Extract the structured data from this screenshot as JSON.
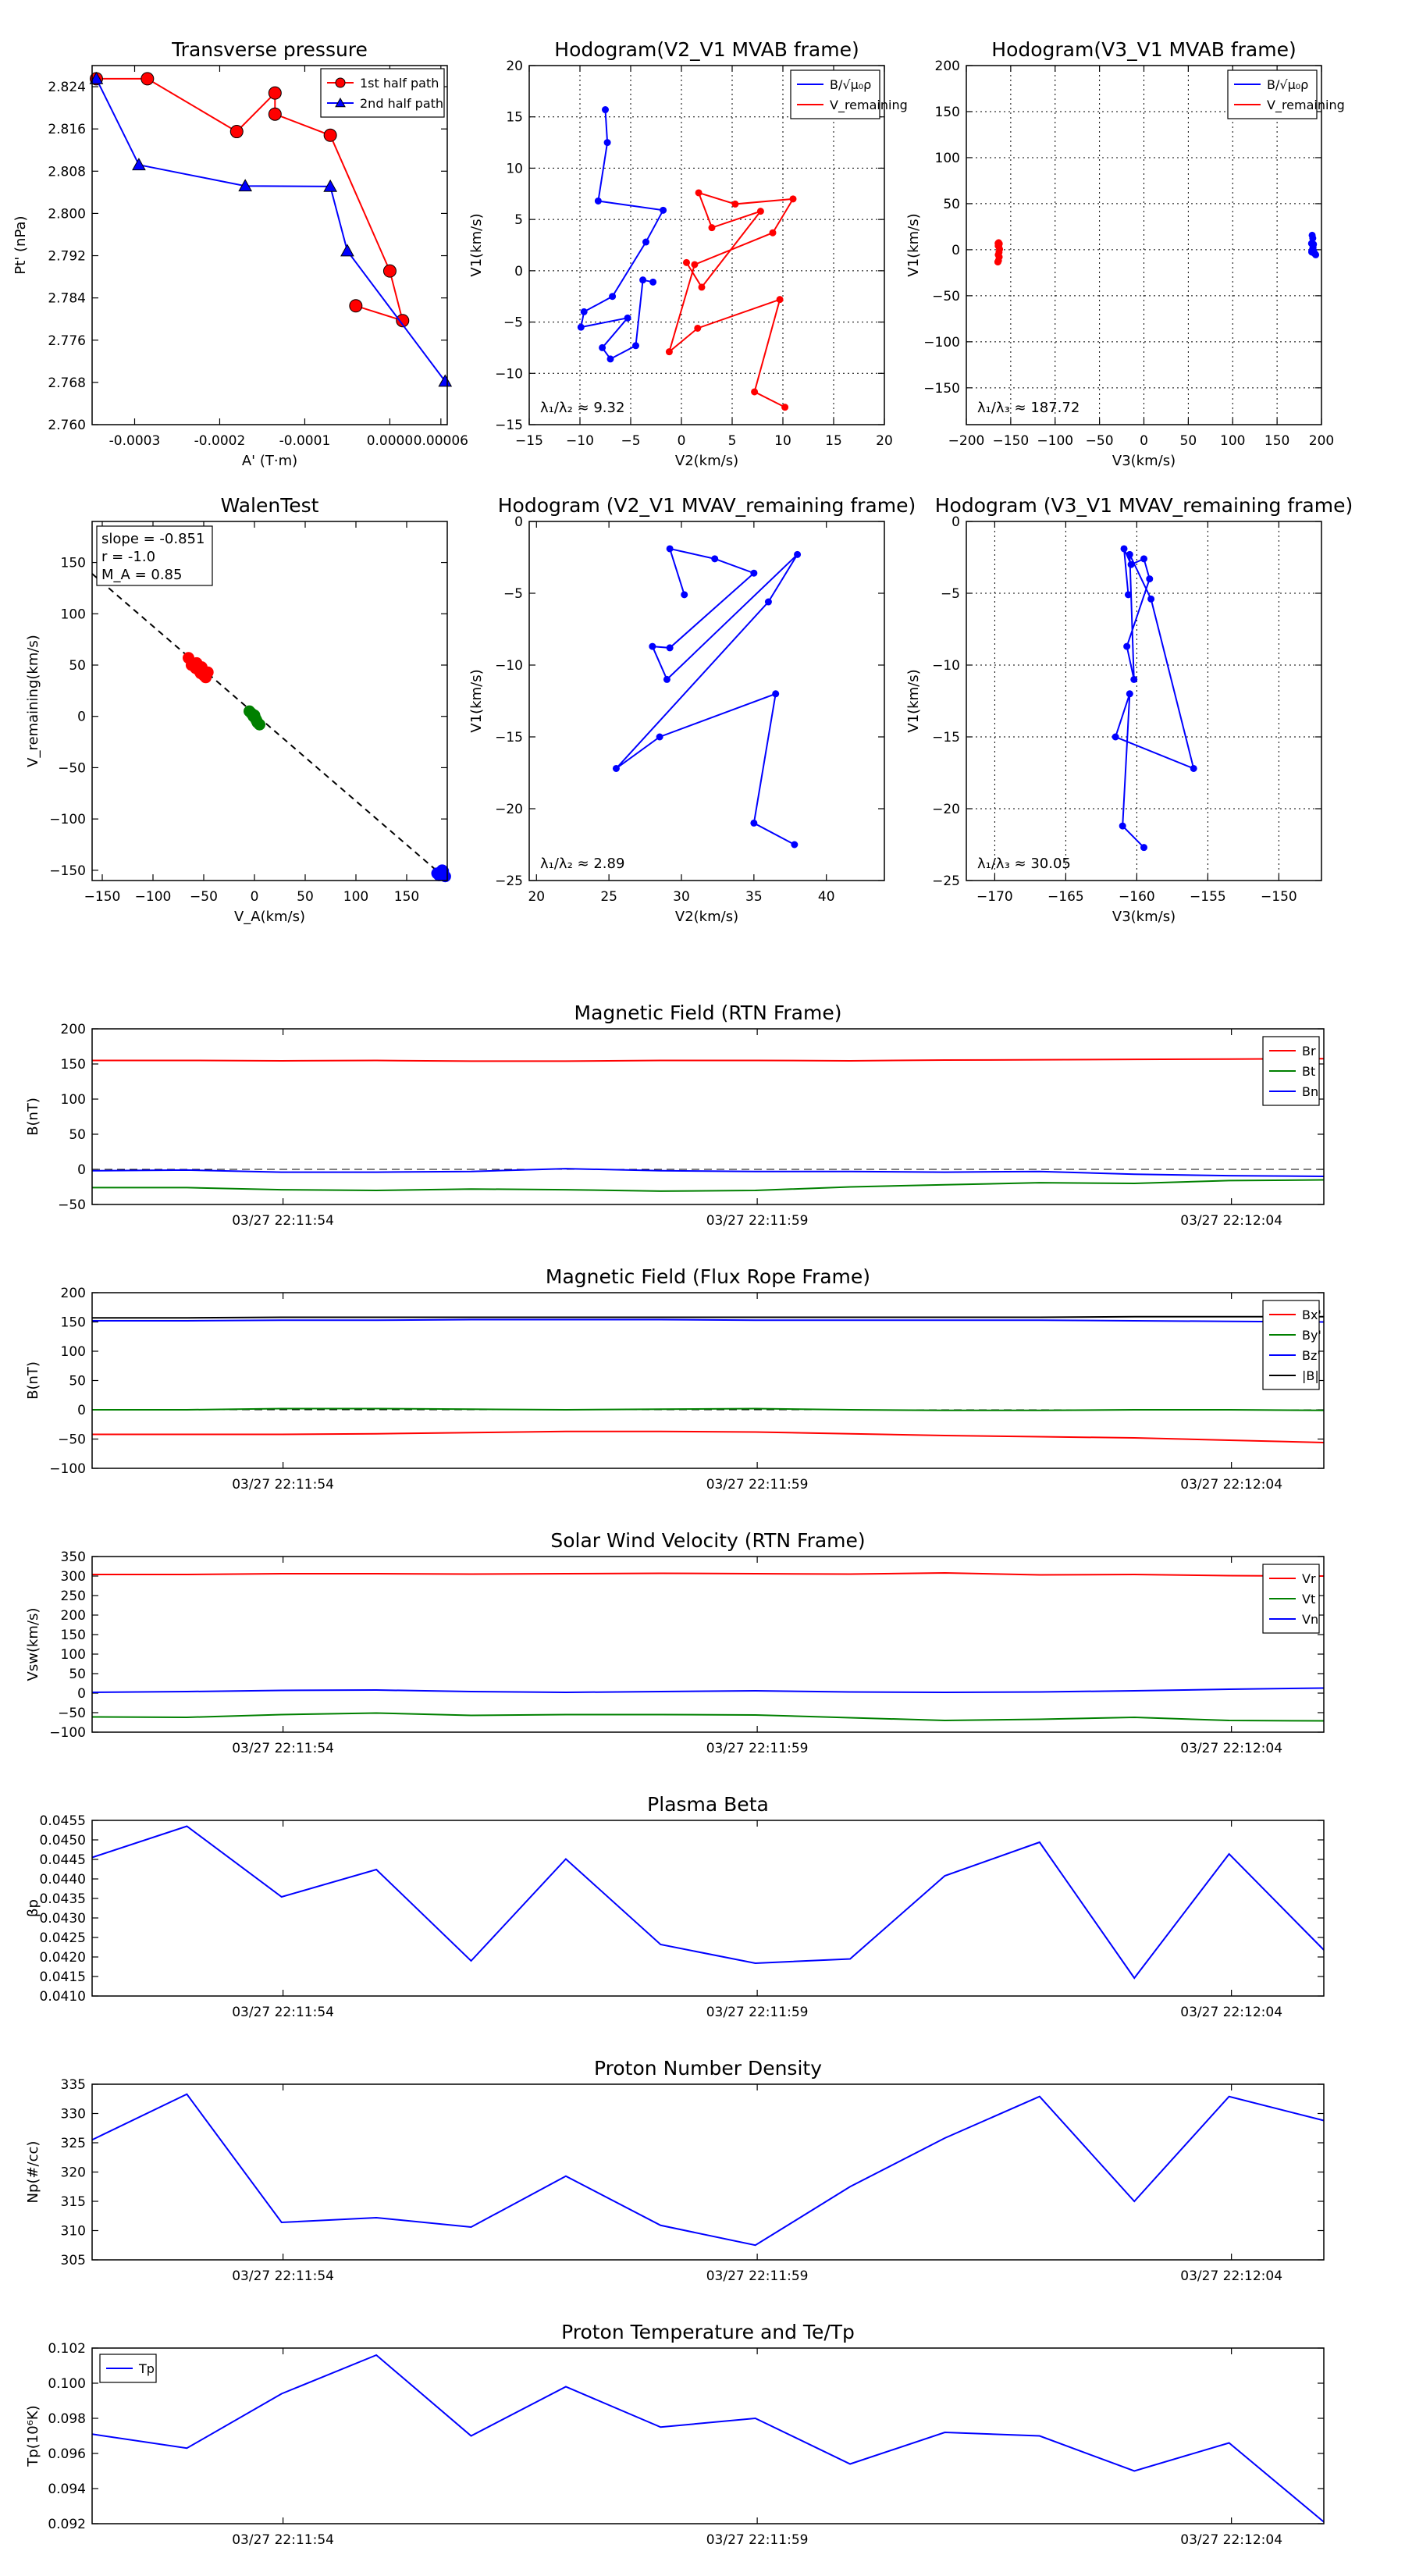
{
  "chart_data": [
    {
      "id": "tp",
      "type": "scatter",
      "title": "Transverse pressure",
      "xlabel": "A' (T·m)",
      "ylabel": "Pt' (nPa)",
      "xlim": [
        -0.00035,
        6.75e-05
      ],
      "ylim": [
        2.76,
        2.828
      ],
      "xticks": [
        -0.0003,
        -0.0002,
        -0.0001,
        0.0,
        6e-05
      ],
      "xtick_labels": [
        "-0.0003",
        "-0.0002",
        "-0.0001",
        "0.0000",
        "0.00006"
      ],
      "yticks": [
        2.76,
        2.768,
        2.776,
        2.784,
        2.792,
        2.8,
        2.808,
        2.816,
        2.824
      ],
      "ytick_labels": [
        "2.760",
        "2.768",
        "2.776",
        "2.784",
        "2.792",
        "2.800",
        "2.808",
        "2.816",
        "2.824"
      ],
      "legend": "top-right",
      "series": [
        {
          "name": "1st half path",
          "color": "#ff0000",
          "marker": "circle",
          "x": [
            -0.000345,
            -0.000285,
            -0.00018,
            -0.000135,
            -0.000135,
            -7e-05,
            0.0,
            1.5e-05,
            -4e-05
          ],
          "y": [
            2.8255,
            2.8255,
            2.8155,
            2.8228,
            2.8188,
            2.8148,
            2.7891,
            2.7797,
            2.7825
          ]
        },
        {
          "name": "2nd half path",
          "color": "#0000ff",
          "marker": "triangle",
          "x": [
            -0.000345,
            -0.000295,
            -0.00017,
            -7e-05,
            -5e-05,
            6.5e-05
          ],
          "y": [
            2.8255,
            2.8092,
            2.8052,
            2.8051,
            2.7929,
            2.7682
          ]
        }
      ]
    },
    {
      "id": "h1",
      "type": "line",
      "title": "Hodogram(V2_V1 MVAB frame)",
      "xlabel": "V2(km/s)",
      "ylabel": "V1(km/s)",
      "xlim": [
        -15,
        20
      ],
      "ylim": [
        -15,
        20
      ],
      "xticks": [
        -15,
        -10,
        -5,
        0,
        5,
        10,
        15,
        20
      ],
      "xtick_labels": [
        "−15",
        "−10",
        "−5",
        "0",
        "5",
        "10",
        "15",
        "20"
      ],
      "yticks": [
        -15,
        -10,
        -5,
        0,
        5,
        10,
        15,
        20
      ],
      "ytick_labels": [
        "−15",
        "−10",
        "−5",
        "0",
        "5",
        "10",
        "15",
        "20"
      ],
      "grid": true,
      "annotation": "λ₁/λ₂ ≈ 9.32",
      "legend": "top-right",
      "series": [
        {
          "name": "B/√μ₀ρ",
          "color": "#0000ff",
          "x": [
            -7.5,
            -7.3,
            -8.2,
            -1.8,
            -3.5,
            -6.8,
            -9.6,
            -9.9,
            -5.3,
            -7.8,
            -7.0,
            -4.5,
            -3.8,
            -2.8
          ],
          "y": [
            15.7,
            12.5,
            6.8,
            5.9,
            2.8,
            -2.5,
            -4.0,
            -5.5,
            -4.6,
            -7.5,
            -8.6,
            -7.3,
            -0.9,
            -1.1
          ]
        },
        {
          "name": "V_remaining",
          "color": "#ff0000",
          "x": [
            10.2,
            7.2,
            9.7,
            1.6,
            -1.2,
            1.3,
            9.0,
            11.0,
            5.3,
            1.7,
            3.0,
            7.8,
            2.0,
            0.5
          ],
          "y": [
            -13.3,
            -11.8,
            -2.8,
            -5.6,
            -7.9,
            0.6,
            3.7,
            7.0,
            6.5,
            7.6,
            4.2,
            5.8,
            -1.6,
            0.8
          ]
        }
      ]
    },
    {
      "id": "h2",
      "type": "line",
      "title": "Hodogram(V3_V1 MVAB frame)",
      "xlabel": "V3(km/s)",
      "ylabel": "V1(km/s)",
      "xlim": [
        -200,
        200
      ],
      "ylim": [
        -190,
        200
      ],
      "xticks": [
        -200,
        -150,
        -100,
        -50,
        0,
        50,
        100,
        150,
        200
      ],
      "xtick_labels": [
        "−200",
        "−150",
        "−100",
        "−50",
        "0",
        "50",
        "100",
        "150",
        "200"
      ],
      "yticks": [
        -150,
        -100,
        -50,
        0,
        50,
        100,
        150,
        200
      ],
      "ytick_labels": [
        "−150",
        "−100",
        "−50",
        "0",
        "50",
        "100",
        "150",
        "200"
      ],
      "grid": true,
      "annotation": "λ₁/λ₃ ≈ 187.72",
      "legend": "top-right",
      "series": [
        {
          "name": "B/√μ₀ρ",
          "color": "#0000ff",
          "x": [
            189.5,
            190.2,
            188.8,
            191.0,
            190.5,
            189.0,
            192.0,
            193.5,
            192.8,
            191.0,
            190.0,
            189.2
          ],
          "y": [
            15.7,
            12.5,
            6.8,
            5.9,
            2.8,
            -2.5,
            -4.0,
            -5.5,
            -4.6,
            -1.0,
            0.5,
            -1.2
          ]
        },
        {
          "name": "V_remaining",
          "color": "#ff0000",
          "x": [
            -164.5,
            -163.8,
            -163.2,
            -164.0,
            -163.0,
            -162.6,
            -163.5,
            -164.2,
            -162.9,
            -163.6,
            -164.1,
            -163.3
          ],
          "y": [
            -13.3,
            -11.8,
            -2.8,
            -5.6,
            -7.9,
            0.6,
            3.7,
            7.0,
            6.5,
            7.6,
            4.2,
            5.8
          ]
        }
      ]
    },
    {
      "id": "walen",
      "type": "scatter",
      "title": "WalenTest",
      "xlabel": "V_A(km/s)",
      "ylabel": "V_remaining(km/s)",
      "xlim": [
        -160,
        190
      ],
      "ylim": [
        -160,
        190
      ],
      "xticks": [
        -150,
        -100,
        -50,
        0,
        50,
        100,
        150
      ],
      "xtick_labels": [
        "−150",
        "−100",
        "−50",
        "0",
        "50",
        "100",
        "150"
      ],
      "yticks": [
        -150,
        -100,
        -50,
        0,
        50,
        100,
        150
      ],
      "ytick_labels": [
        "−150",
        "−100",
        "−50",
        "0",
        "50",
        "100",
        "150"
      ],
      "annotation_lines": [
        "slope = -0.851",
        "r = -1.0",
        "M_A = 0.85"
      ],
      "fit_line": {
        "x": [
          -160,
          185
        ],
        "y": [
          139,
          -155
        ]
      },
      "series": [
        {
          "name": "red",
          "color": "#ff0000",
          "x": [
            -65,
            -62,
            -58,
            -55,
            -53,
            -50,
            -48,
            -46,
            -52,
            -57
          ],
          "y": [
            57,
            50,
            47,
            45,
            42,
            40,
            38,
            43,
            48,
            52
          ]
        },
        {
          "name": "green",
          "color": "#008000",
          "x": [
            -5,
            -3,
            -1,
            1,
            2,
            3,
            5,
            0,
            -2
          ],
          "y": [
            5,
            3,
            0,
            -2,
            -4,
            -6,
            -8,
            1,
            2
          ]
        },
        {
          "name": "blue",
          "color": "#0000ff",
          "x": [
            180,
            182,
            184,
            186,
            188,
            183,
            185
          ],
          "y": [
            -153,
            -155,
            -152,
            -151,
            -156,
            -154,
            -150
          ]
        }
      ]
    },
    {
      "id": "h3",
      "type": "line",
      "title": "Hodogram (V2_V1 MVAV_remaining frame)",
      "xlabel": "V2(km/s)",
      "ylabel": "V1(km/s)",
      "xlim": [
        19.5,
        44
      ],
      "ylim": [
        -25,
        0
      ],
      "xticks": [
        20,
        25,
        30,
        35,
        40
      ],
      "xtick_labels": [
        "20",
        "25",
        "30",
        "35",
        "40"
      ],
      "yticks": [
        -25,
        -20,
        -15,
        -10,
        -5,
        0
      ],
      "ytick_labels": [
        "−25",
        "−20",
        "−15",
        "−10",
        "−5",
        "0"
      ],
      "annotation": "λ₁/λ₂ ≈ 2.89",
      "series": [
        {
          "name": "blue",
          "color": "#0000ff",
          "x": [
            37.8,
            35.0,
            36.5,
            28.5,
            25.5,
            36.0,
            38.0,
            29.0,
            28.0,
            29.2,
            35.0,
            32.3,
            29.2,
            30.2
          ],
          "y": [
            -22.5,
            -21.0,
            -12.0,
            -15.0,
            -17.2,
            -5.6,
            -2.3,
            -11.0,
            -8.7,
            -8.8,
            -3.6,
            -2.6,
            -1.9,
            -5.1
          ]
        }
      ]
    },
    {
      "id": "h4",
      "type": "line",
      "title": "Hodogram (V3_V1 MVAV_remaining frame)",
      "xlabel": "V3(km/s)",
      "ylabel": "V1(km/s)",
      "xlim": [
        -172,
        -147
      ],
      "ylim": [
        -25,
        0
      ],
      "xticks": [
        -170,
        -165,
        -160,
        -155,
        -150
      ],
      "xtick_labels": [
        "−170",
        "−165",
        "−160",
        "−155",
        "−150"
      ],
      "yticks": [
        -25,
        -20,
        -15,
        -10,
        -5,
        0
      ],
      "ytick_labels": [
        "−25",
        "−20",
        "−15",
        "−10",
        "−5",
        "0"
      ],
      "grid": true,
      "annotation": "λ₁/λ₃ ≈ 30.05",
      "series": [
        {
          "name": "blue",
          "color": "#0000ff",
          "x": [
            -159.5,
            -161.0,
            -160.5,
            -161.5,
            -156.0,
            -159.0,
            -160.5,
            -160.2,
            -160.7,
            -159.1,
            -159.5,
            -160.4,
            -160.9,
            -160.6
          ],
          "y": [
            -22.7,
            -21.2,
            -12.0,
            -15.0,
            -17.2,
            -5.4,
            -2.3,
            -11.0,
            -8.7,
            -4.0,
            -2.6,
            -3.0,
            -1.9,
            -5.1
          ]
        }
      ]
    },
    {
      "id": "mag_rtn",
      "type": "line",
      "title": "Magnetic Field (RTN Frame)",
      "ylabel": "B(nT)",
      "ylim": [
        -50,
        200
      ],
      "yticks": [
        -50,
        0,
        50,
        100,
        150,
        200
      ],
      "ytick_labels": [
        "−50",
        "0",
        "50",
        "100",
        "150",
        "200"
      ],
      "time_ticks": [
        "03/27 22:11:54",
        "03/27 22:11:59",
        "03/27 22:12:04"
      ],
      "legend": "right",
      "zero_line": true,
      "series": [
        {
          "name": "Br",
          "color": "#ff0000",
          "values": [
            155,
            155,
            154.5,
            155,
            154,
            154,
            155,
            155,
            154.5,
            155.5,
            156,
            156.5,
            157,
            157.5
          ]
        },
        {
          "name": "Bt",
          "color": "#008000",
          "values": [
            -26,
            -26,
            -29,
            -30,
            -28,
            -29,
            -31,
            -30,
            -25,
            -22,
            -19,
            -20,
            -16,
            -15
          ]
        },
        {
          "name": "Bn",
          "color": "#0000ff",
          "values": [
            -2,
            -1,
            -4,
            -4,
            -3,
            1,
            -2,
            -3,
            -3,
            -4,
            -3,
            -7,
            -9,
            -10
          ]
        }
      ]
    },
    {
      "id": "mag_fr",
      "type": "line",
      "title": "Magnetic Field (Flux Rope Frame)",
      "ylabel": "B(nT)",
      "ylim": [
        -100,
        200
      ],
      "yticks": [
        -100,
        -50,
        0,
        50,
        100,
        150,
        200
      ],
      "ytick_labels": [
        "−100",
        "−50",
        "0",
        "50",
        "100",
        "150",
        "200"
      ],
      "time_ticks": [
        "03/27 22:11:54",
        "03/27 22:11:59",
        "03/27 22:12:04"
      ],
      "legend": "right",
      "zero_line": true,
      "series": [
        {
          "name": "Bx'",
          "color": "#ff0000",
          "values": [
            -42,
            -42,
            -42,
            -41,
            -39,
            -37,
            -37,
            -38,
            -41,
            -44,
            -46,
            -48,
            -52,
            -56
          ]
        },
        {
          "name": "By'",
          "color": "#008000",
          "values": [
            0,
            0,
            2,
            2,
            1,
            0,
            1,
            2,
            0,
            -1,
            -1,
            0,
            0,
            -1
          ]
        },
        {
          "name": "Bz'",
          "color": "#0000ff",
          "values": [
            152,
            152,
            153,
            153,
            154,
            154,
            154,
            153,
            153,
            153,
            153,
            152,
            151,
            150
          ]
        },
        {
          "name": "|B|",
          "color": "#000000",
          "values": [
            157,
            157,
            158,
            158,
            158,
            158,
            158,
            158,
            158,
            158,
            158,
            159,
            159,
            159
          ]
        }
      ]
    },
    {
      "id": "vsw",
      "type": "line",
      "title": "Solar Wind Velocity (RTN Frame)",
      "ylabel": "Vsw(km/s)",
      "ylim": [
        -100,
        350
      ],
      "yticks": [
        -100,
        -50,
        0,
        50,
        100,
        150,
        200,
        250,
        300,
        350
      ],
      "ytick_labels": [
        "−100",
        "−50",
        "0",
        "50",
        "100",
        "150",
        "200",
        "250",
        "300",
        "350"
      ],
      "time_ticks": [
        "03/27 22:11:54",
        "03/27 22:11:59",
        "03/27 22:12:04"
      ],
      "legend": "right",
      "series": [
        {
          "name": "Vr",
          "color": "#ff0000",
          "values": [
            304,
            304,
            306,
            306,
            305,
            306,
            307,
            306,
            305,
            308,
            303,
            304,
            301,
            300
          ]
        },
        {
          "name": "Vt",
          "color": "#008000",
          "values": [
            -61,
            -62,
            -55,
            -51,
            -57,
            -55,
            -55,
            -56,
            -63,
            -70,
            -67,
            -62,
            -70,
            -71
          ]
        },
        {
          "name": "Vn",
          "color": "#0000ff",
          "values": [
            2,
            4,
            7,
            8,
            4,
            2,
            4,
            6,
            3,
            2,
            3,
            6,
            10,
            13
          ]
        }
      ]
    },
    {
      "id": "beta",
      "type": "line",
      "title": "Plasma Beta",
      "ylabel": "βp",
      "ylim": [
        0.041,
        0.0455
      ],
      "yticks": [
        0.041,
        0.0415,
        0.042,
        0.0425,
        0.043,
        0.0435,
        0.044,
        0.0445,
        0.045,
        0.0455
      ],
      "ytick_labels": [
        "0.0410",
        "0.0415",
        "0.0420",
        "0.0425",
        "0.0430",
        "0.0435",
        "0.0440",
        "0.0445",
        "0.0450",
        "0.0455"
      ],
      "time_ticks": [
        "03/27 22:11:54",
        "03/27 22:11:59",
        "03/27 22:12:04"
      ],
      "series": [
        {
          "name": "beta",
          "color": "#0000ff",
          "values": [
            0.04455,
            0.04535,
            0.04354,
            0.04424,
            0.0419,
            0.04451,
            0.04232,
            0.04184,
            0.04195,
            0.04408,
            0.04494,
            0.04146,
            0.04464,
            0.04218
          ]
        }
      ]
    },
    {
      "id": "np",
      "type": "line",
      "title": "Proton Number Density",
      "ylabel": "Np(#/cc)",
      "ylim": [
        305,
        335
      ],
      "yticks": [
        305,
        310,
        315,
        320,
        325,
        330,
        335
      ],
      "ytick_labels": [
        "305",
        "310",
        "315",
        "320",
        "325",
        "330",
        "335"
      ],
      "time_ticks": [
        "03/27 22:11:54",
        "03/27 22:11:59",
        "03/27 22:12:04"
      ],
      "series": [
        {
          "name": "Np",
          "color": "#0000ff",
          "values": [
            325.5,
            333.3,
            311.4,
            312.2,
            310.6,
            319.3,
            310.9,
            307.5,
            317.5,
            325.8,
            332.9,
            315.0,
            332.9,
            328.8
          ]
        }
      ]
    },
    {
      "id": "tp_temp",
      "type": "line",
      "title": "Proton Temperature and Te/Tp",
      "ylabel": "Tp(10⁶K)",
      "ylim": [
        0.092,
        0.102
      ],
      "yticks": [
        0.092,
        0.094,
        0.096,
        0.098,
        0.1,
        0.102
      ],
      "ytick_labels": [
        "0.092",
        "0.094",
        "0.096",
        "0.098",
        "0.100",
        "0.102"
      ],
      "time_ticks": [
        "03/27 22:11:54",
        "03/27 22:11:59",
        "03/27 22:12:04"
      ],
      "legend": "top-left",
      "series": [
        {
          "name": "Tp",
          "color": "#0000ff",
          "values": [
            0.0971,
            0.0963,
            0.0994,
            0.1016,
            0.097,
            0.0998,
            0.0975,
            0.098,
            0.0954,
            0.0972,
            0.097,
            0.095,
            0.0966,
            0.0921
          ]
        }
      ]
    }
  ]
}
